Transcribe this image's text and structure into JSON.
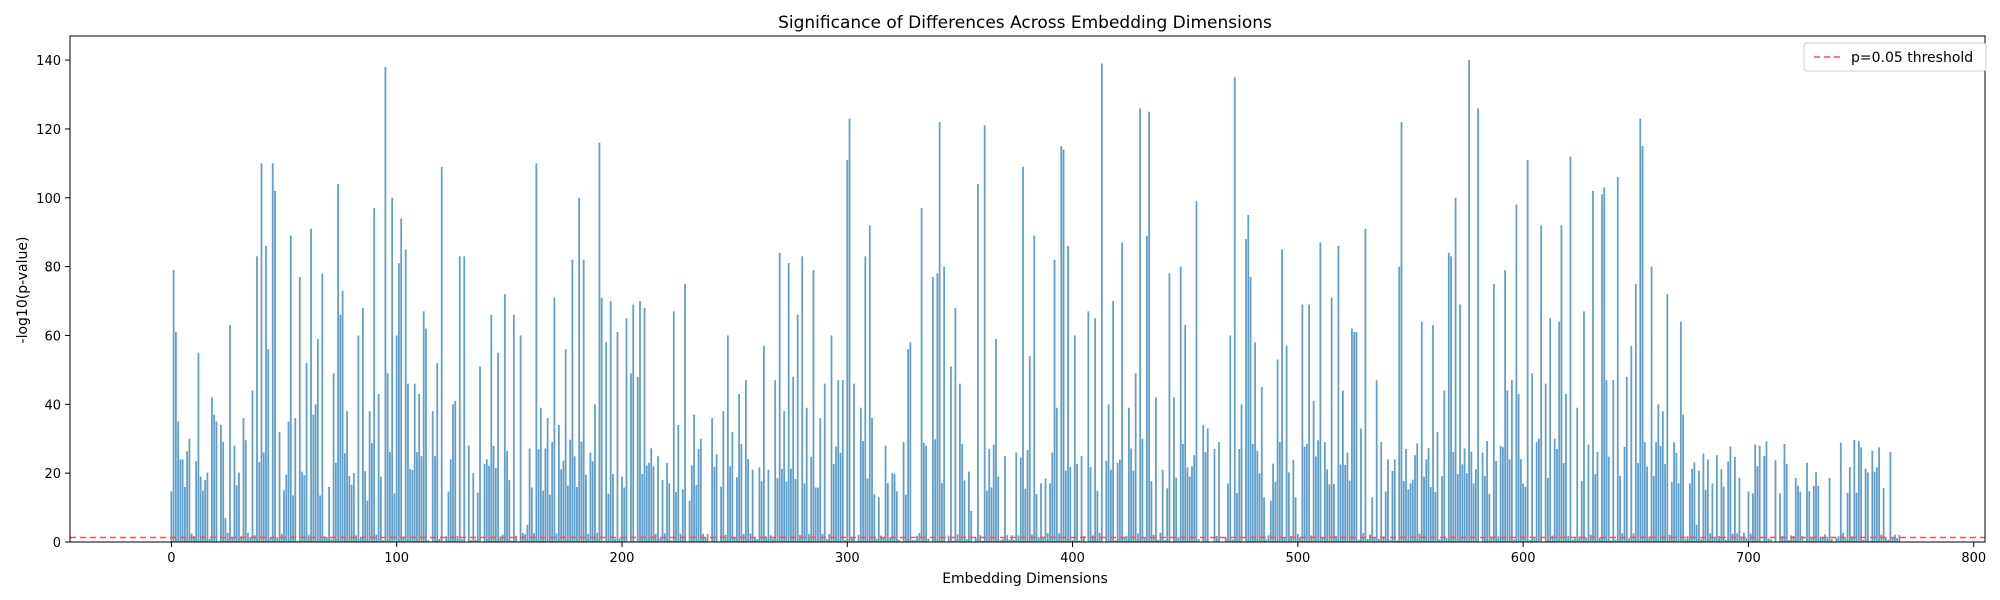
{
  "chart_data": {
    "type": "bar",
    "title": "Significance of Differences Across Embedding Dimensions",
    "xlabel": "Embedding Dimensions",
    "ylabel": "-log10(p-value)",
    "xlim": [
      -45,
      805
    ],
    "ylim": [
      0,
      147
    ],
    "xticks": [
      0,
      100,
      200,
      300,
      400,
      500,
      600,
      700,
      800
    ],
    "yticks": [
      0,
      20,
      40,
      60,
      80,
      100,
      120,
      140
    ],
    "num_dimensions": 768,
    "bar_color": "#1f77b4",
    "threshold": {
      "label": "p=0.05 threshold",
      "value": 1.301,
      "color": "#ff4d4d",
      "style": "dashed"
    },
    "legend_position": "top-right",
    "series": [
      {
        "values_note_points": "peaks read from chart; remaining dimensions low values",
        "peaks": [
          [
            1,
            79
          ],
          [
            2,
            61
          ],
          [
            3,
            35
          ],
          [
            4,
            24
          ],
          [
            5,
            24
          ],
          [
            6,
            16
          ],
          [
            8,
            30
          ],
          [
            12,
            55
          ],
          [
            13,
            19
          ],
          [
            15,
            18
          ],
          [
            18,
            42
          ],
          [
            19,
            37
          ],
          [
            20,
            35
          ],
          [
            22,
            34
          ],
          [
            24,
            7
          ],
          [
            26,
            63
          ],
          [
            28,
            28
          ],
          [
            32,
            36
          ],
          [
            36,
            44
          ],
          [
            38,
            83
          ],
          [
            40,
            110
          ],
          [
            41,
            26
          ],
          [
            42,
            86
          ],
          [
            43,
            56
          ],
          [
            45,
            110
          ],
          [
            46,
            102
          ],
          [
            48,
            32
          ],
          [
            50,
            15
          ],
          [
            52,
            35
          ],
          [
            53,
            89
          ],
          [
            55,
            36
          ],
          [
            57,
            77
          ],
          [
            60,
            52
          ],
          [
            62,
            91
          ],
          [
            63,
            37
          ],
          [
            64,
            40
          ],
          [
            65,
            59
          ],
          [
            67,
            78
          ],
          [
            70,
            16
          ],
          [
            72,
            49
          ],
          [
            74,
            104
          ],
          [
            75,
            66
          ],
          [
            76,
            73
          ],
          [
            78,
            38
          ],
          [
            81,
            20
          ],
          [
            83,
            60
          ],
          [
            85,
            68
          ],
          [
            87,
            12
          ],
          [
            88,
            38
          ],
          [
            90,
            97
          ],
          [
            92,
            43
          ],
          [
            93,
            19
          ],
          [
            95,
            138
          ],
          [
            96,
            49
          ],
          [
            98,
            100
          ],
          [
            100,
            60
          ],
          [
            101,
            81
          ],
          [
            102,
            94
          ],
          [
            104,
            85
          ],
          [
            105,
            46
          ],
          [
            108,
            46
          ],
          [
            110,
            43
          ],
          [
            112,
            67
          ],
          [
            113,
            62
          ],
          [
            116,
            38
          ],
          [
            118,
            52
          ],
          [
            120,
            109
          ],
          [
            124,
            24
          ],
          [
            125,
            40
          ],
          [
            126,
            41
          ],
          [
            128,
            83
          ],
          [
            130,
            83
          ],
          [
            132,
            28
          ],
          [
            134,
            20
          ],
          [
            137,
            51
          ],
          [
            140,
            24
          ],
          [
            142,
            66
          ],
          [
            145,
            55
          ],
          [
            148,
            72
          ],
          [
            150,
            18
          ],
          [
            152,
            66
          ],
          [
            155,
            60
          ],
          [
            158,
            5
          ],
          [
            162,
            110
          ],
          [
            164,
            39
          ],
          [
            167,
            36
          ],
          [
            170,
            71
          ],
          [
            172,
            34
          ],
          [
            175,
            56
          ],
          [
            178,
            82
          ],
          [
            180,
            16
          ],
          [
            181,
            100
          ],
          [
            183,
            82
          ],
          [
            186,
            26
          ],
          [
            188,
            40
          ],
          [
            190,
            116
          ],
          [
            191,
            71
          ],
          [
            193,
            58
          ],
          [
            195,
            70
          ],
          [
            198,
            61
          ],
          [
            200,
            19
          ],
          [
            202,
            65
          ],
          [
            204,
            49
          ],
          [
            205,
            69
          ],
          [
            207,
            48
          ],
          [
            208,
            70
          ],
          [
            210,
            68
          ],
          [
            212,
            23
          ],
          [
            214,
            22
          ],
          [
            218,
            18
          ],
          [
            220,
            23
          ],
          [
            223,
            67
          ],
          [
            225,
            34
          ],
          [
            228,
            75
          ],
          [
            230,
            12
          ],
          [
            232,
            37
          ],
          [
            235,
            30
          ],
          [
            240,
            36
          ],
          [
            245,
            38
          ],
          [
            247,
            60
          ],
          [
            249,
            32
          ],
          [
            252,
            43
          ],
          [
            255,
            47
          ],
          [
            258,
            21
          ],
          [
            263,
            57
          ],
          [
            265,
            21
          ],
          [
            268,
            47
          ],
          [
            270,
            84
          ],
          [
            272,
            38
          ],
          [
            274,
            81
          ],
          [
            276,
            48
          ],
          [
            278,
            66
          ],
          [
            280,
            83
          ],
          [
            282,
            39
          ],
          [
            285,
            79
          ],
          [
            288,
            36
          ],
          [
            290,
            46
          ],
          [
            293,
            60
          ],
          [
            296,
            47
          ],
          [
            298,
            47
          ],
          [
            300,
            111
          ],
          [
            301,
            123
          ],
          [
            303,
            46
          ],
          [
            306,
            39
          ],
          [
            308,
            83
          ],
          [
            310,
            92
          ],
          [
            311,
            36
          ],
          [
            314,
            13
          ],
          [
            317,
            28
          ],
          [
            320,
            20
          ],
          [
            325,
            29
          ],
          [
            327,
            56
          ],
          [
            328,
            58
          ],
          [
            333,
            97
          ],
          [
            335,
            28
          ],
          [
            338,
            77
          ],
          [
            340,
            78
          ],
          [
            341,
            122
          ],
          [
            343,
            80
          ],
          [
            346,
            51
          ],
          [
            348,
            68
          ],
          [
            350,
            46
          ],
          [
            355,
            9
          ],
          [
            358,
            104
          ],
          [
            361,
            121
          ],
          [
            363,
            27
          ],
          [
            366,
            59
          ],
          [
            367,
            19
          ],
          [
            370,
            25
          ],
          [
            375,
            26
          ],
          [
            378,
            109
          ],
          [
            381,
            54
          ],
          [
            383,
            89
          ],
          [
            386,
            17
          ],
          [
            390,
            17
          ],
          [
            392,
            82
          ],
          [
            393,
            39
          ],
          [
            395,
            115
          ],
          [
            396,
            114
          ],
          [
            398,
            86
          ],
          [
            401,
            60
          ],
          [
            404,
            25
          ],
          [
            407,
            67
          ],
          [
            410,
            65
          ],
          [
            413,
            139
          ],
          [
            416,
            40
          ],
          [
            418,
            70
          ],
          [
            420,
            23
          ],
          [
            422,
            87
          ],
          [
            425,
            39
          ],
          [
            428,
            49
          ],
          [
            430,
            126
          ],
          [
            431,
            30
          ],
          [
            433,
            89
          ],
          [
            434,
            125
          ],
          [
            437,
            42
          ],
          [
            440,
            21
          ],
          [
            443,
            78
          ],
          [
            445,
            42
          ],
          [
            448,
            80
          ],
          [
            450,
            63
          ],
          [
            453,
            22
          ],
          [
            455,
            99
          ],
          [
            458,
            34
          ],
          [
            460,
            33
          ],
          [
            463,
            27
          ],
          [
            465,
            29
          ],
          [
            470,
            60
          ],
          [
            472,
            135
          ],
          [
            474,
            27
          ],
          [
            475,
            40
          ],
          [
            477,
            88
          ],
          [
            478,
            95
          ],
          [
            479,
            77
          ],
          [
            481,
            58
          ],
          [
            484,
            45
          ],
          [
            485,
            13
          ],
          [
            488,
            12
          ],
          [
            491,
            53
          ],
          [
            493,
            85
          ],
          [
            495,
            57
          ],
          [
            499,
            13
          ],
          [
            502,
            69
          ],
          [
            505,
            69
          ],
          [
            507,
            41
          ],
          [
            510,
            87
          ],
          [
            512,
            29
          ],
          [
            515,
            71
          ],
          [
            518,
            86
          ],
          [
            520,
            44
          ],
          [
            522,
            26
          ],
          [
            524,
            62
          ],
          [
            525,
            61
          ],
          [
            526,
            61
          ],
          [
            528,
            33
          ],
          [
            530,
            91
          ],
          [
            533,
            13
          ],
          [
            535,
            47
          ],
          [
            537,
            29
          ],
          [
            540,
            24
          ],
          [
            543,
            24
          ],
          [
            545,
            80
          ],
          [
            546,
            122
          ],
          [
            548,
            27
          ],
          [
            550,
            17
          ],
          [
            555,
            64
          ],
          [
            557,
            24
          ],
          [
            560,
            63
          ],
          [
            562,
            32
          ],
          [
            565,
            44
          ],
          [
            567,
            84
          ],
          [
            568,
            83
          ],
          [
            570,
            100
          ],
          [
            572,
            69
          ],
          [
            575,
            20
          ],
          [
            576,
            140
          ],
          [
            578,
            17
          ],
          [
            580,
            126
          ],
          [
            582,
            26
          ],
          [
            585,
            14
          ],
          [
            587,
            75
          ],
          [
            590,
            28
          ],
          [
            592,
            79
          ],
          [
            593,
            44
          ],
          [
            595,
            47
          ],
          [
            597,
            98
          ],
          [
            598,
            43
          ],
          [
            600,
            17
          ],
          [
            602,
            111
          ],
          [
            604,
            49
          ],
          [
            606,
            29
          ],
          [
            607,
            30
          ],
          [
            608,
            92
          ],
          [
            610,
            46
          ],
          [
            612,
            65
          ],
          [
            614,
            30
          ],
          [
            616,
            64
          ],
          [
            617,
            92
          ],
          [
            619,
            43
          ],
          [
            621,
            112
          ],
          [
            624,
            39
          ],
          [
            627,
            67
          ],
          [
            631,
            102
          ],
          [
            635,
            101
          ],
          [
            636,
            103
          ],
          [
            637,
            47
          ],
          [
            640,
            47
          ],
          [
            642,
            106
          ],
          [
            646,
            48
          ],
          [
            648,
            57
          ],
          [
            650,
            75
          ],
          [
            652,
            123
          ],
          [
            653,
            115
          ],
          [
            654,
            29
          ],
          [
            657,
            80
          ],
          [
            660,
            40
          ],
          [
            662,
            38
          ],
          [
            664,
            72
          ],
          [
            667,
            29
          ],
          [
            670,
            64
          ],
          [
            671,
            37
          ],
          [
            674,
            17
          ],
          [
            677,
            5
          ]
        ]
      }
    ]
  }
}
